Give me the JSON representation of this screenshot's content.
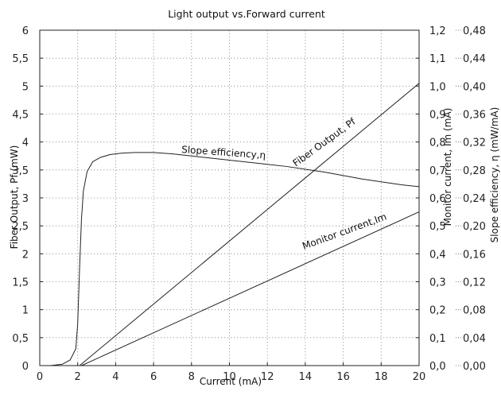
{
  "chart_data": {
    "type": "line",
    "title": "Light output vs.Forward current",
    "xlabel": "Current  (mA)",
    "ylabel_left": "Fiber Output,  Pf  (mW)",
    "ylabel_right1": "Monitor current,  Im (mA)",
    "ylabel_right2": "Slope efficiency,  η  (mW/mA)",
    "grid": true,
    "xlim": [
      0,
      20
    ],
    "ylim_left": [
      0,
      6
    ],
    "ylim_right1": [
      0,
      1.2
    ],
    "ylim_right2": [
      0,
      0.48
    ],
    "xticks": [
      "0",
      "2",
      "4",
      "6",
      "8",
      "10",
      "12",
      "14",
      "16",
      "18",
      "20"
    ],
    "yticks_left": [
      "0",
      "0,5",
      "1",
      "1,5",
      "2",
      "2,5",
      "3",
      "3,5",
      "4",
      "4,5",
      "5",
      "5,5",
      "6"
    ],
    "yticks_right1": [
      "0,0",
      "0,1",
      "0,2",
      "0,3",
      "0,4",
      "0,5",
      "0,6",
      "0,7",
      "0,8",
      "0,9",
      "1,0",
      "1,1",
      "1,2"
    ],
    "yticks_right2": [
      "0,00",
      "0,04",
      "0,08",
      "0,12",
      "0,16",
      "0,20",
      "0,24",
      "0,28",
      "0,32",
      "0,36",
      "0,40",
      "0,44",
      "0,48"
    ],
    "series": [
      {
        "name": "Fiber Output, Pf",
        "label": "Fiber Output, Pf",
        "axis": "left",
        "color": "#222222",
        "x": [
          2.1,
          20
        ],
        "y": [
          0,
          5.05
        ]
      },
      {
        "name": "Monitor current,Im",
        "label": "Monitor current,Im",
        "axis": "right1",
        "color": "#222222",
        "x": [
          2.2,
          20
        ],
        "y": [
          0,
          0.55
        ]
      },
      {
        "name": "Slope efficiency,η",
        "label": "Slope efficiency,η",
        "axis": "right2",
        "color": "#222222",
        "x": [
          0,
          0.6,
          1.2,
          1.6,
          1.9,
          2.0,
          2.1,
          2.2,
          2.3,
          2.5,
          2.8,
          3.2,
          3.7,
          4.3,
          5.0,
          6.0,
          7.0,
          8.0,
          9.0,
          10.0,
          11.0,
          12.0,
          13.0,
          14.0,
          15.0,
          16.0,
          17.0,
          18.0,
          19.0,
          20.0
        ],
        "y": [
          0,
          0.0002,
          0.002,
          0.008,
          0.024,
          0.06,
          0.14,
          0.21,
          0.25,
          0.278,
          0.292,
          0.298,
          0.302,
          0.304,
          0.305,
          0.305,
          0.303,
          0.3,
          0.297,
          0.294,
          0.291,
          0.288,
          0.285,
          0.281,
          0.277,
          0.272,
          0.267,
          0.263,
          0.259,
          0.256
        ]
      }
    ]
  }
}
